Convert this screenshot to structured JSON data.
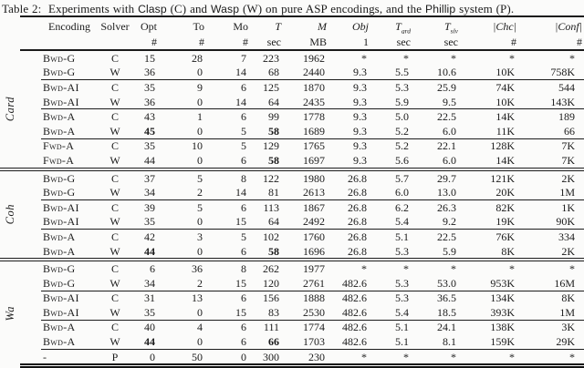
{
  "colors": {
    "ink": "#1b1b1b",
    "background": "#fbfbfa"
  },
  "caption": {
    "segments": [
      {
        "text": "Table 2:  Experiments with ",
        "sans": false
      },
      {
        "text": "Clasp",
        "sans": true
      },
      {
        "text": " (C) and ",
        "sans": false
      },
      {
        "text": "Wasp",
        "sans": true
      },
      {
        "text": " (W) on pure ASP encodings, and the ",
        "sans": false
      },
      {
        "text": "Phillip",
        "sans": true
      },
      {
        "text": " system (P).",
        "sans": false
      }
    ]
  },
  "table": {
    "columns": [
      {
        "key": "encoding",
        "label": "Encoding",
        "unit": "",
        "italic": false
      },
      {
        "key": "solver",
        "label": "Solver",
        "unit": "",
        "italic": false
      },
      {
        "key": "opt",
        "label": "Opt",
        "unit": "#",
        "italic": false
      },
      {
        "key": "to",
        "label": "To",
        "unit": "#",
        "italic": false
      },
      {
        "key": "mo",
        "label": "Mo",
        "unit": "#",
        "italic": false
      },
      {
        "key": "t",
        "label": "T",
        "unit": "sec",
        "italic": true
      },
      {
        "key": "m",
        "label": "M",
        "unit": "MB",
        "italic": true
      },
      {
        "key": "obj",
        "label": "Obj",
        "unit": "1",
        "italic": true
      },
      {
        "key": "tgrd",
        "label": "T",
        "sub": "grd",
        "unit": "sec",
        "italic": true
      },
      {
        "key": "tslv",
        "label": "T",
        "sub": "slv",
        "unit": "sec",
        "italic": true
      },
      {
        "key": "chc",
        "label": "|Chc|",
        "unit": "#",
        "italic": true
      },
      {
        "key": "conf",
        "label": "|Conf|",
        "unit": "#",
        "italic": true
      }
    ],
    "groups": [
      {
        "label": "Card",
        "subgroups": [
          {
            "rows": [
              {
                "encoding": "Bwd-G",
                "solver": "C",
                "values": [
                  "15",
                  "28",
                  "7",
                  "223",
                  "1962",
                  "*",
                  "*",
                  "*",
                  "*",
                  "*"
                ],
                "bold": []
              },
              {
                "encoding": "Bwd-G",
                "solver": "W",
                "values": [
                  "36",
                  "0",
                  "14",
                  "68",
                  "2440",
                  "9.3",
                  "5.5",
                  "10.6",
                  "10K",
                  "758K"
                ],
                "bold": []
              }
            ]
          },
          {
            "rows": [
              {
                "encoding": "Bwd-AI",
                "solver": "C",
                "values": [
                  "35",
                  "9",
                  "6",
                  "125",
                  "1870",
                  "9.3",
                  "5.3",
                  "25.9",
                  "74K",
                  "544"
                ],
                "bold": []
              },
              {
                "encoding": "Bwd-AI",
                "solver": "W",
                "values": [
                  "36",
                  "0",
                  "14",
                  "64",
                  "2435",
                  "9.3",
                  "5.9",
                  "9.5",
                  "10K",
                  "143K"
                ],
                "bold": []
              }
            ]
          },
          {
            "rows": [
              {
                "encoding": "Bwd-A",
                "solver": "C",
                "values": [
                  "43",
                  "1",
                  "6",
                  "99",
                  "1778",
                  "9.3",
                  "5.0",
                  "22.5",
                  "14K",
                  "189"
                ],
                "bold": []
              },
              {
                "encoding": "Bwd-A",
                "solver": "W",
                "values": [
                  "45",
                  "0",
                  "5",
                  "58",
                  "1689",
                  "9.3",
                  "5.2",
                  "6.0",
                  "11K",
                  "66"
                ],
                "bold": [
                  0,
                  3
                ]
              }
            ]
          },
          {
            "rows": [
              {
                "encoding": "Fwd-A",
                "solver": "C",
                "values": [
                  "35",
                  "10",
                  "5",
                  "129",
                  "1765",
                  "9.3",
                  "5.2",
                  "22.1",
                  "128K",
                  "7K"
                ],
                "bold": []
              },
              {
                "encoding": "Fwd-A",
                "solver": "W",
                "values": [
                  "44",
                  "0",
                  "6",
                  "58",
                  "1697",
                  "9.3",
                  "5.6",
                  "6.0",
                  "14K",
                  "7K"
                ],
                "bold": [
                  3
                ]
              }
            ]
          }
        ]
      },
      {
        "label": "Coh",
        "subgroups": [
          {
            "rows": [
              {
                "encoding": "Bwd-G",
                "solver": "C",
                "values": [
                  "37",
                  "5",
                  "8",
                  "122",
                  "1980",
                  "26.8",
                  "5.7",
                  "29.7",
                  "121K",
                  "2K"
                ],
                "bold": []
              },
              {
                "encoding": "Bwd-G",
                "solver": "W",
                "values": [
                  "34",
                  "2",
                  "14",
                  "81",
                  "2613",
                  "26.8",
                  "6.0",
                  "13.0",
                  "20K",
                  "1M"
                ],
                "bold": []
              }
            ]
          },
          {
            "rows": [
              {
                "encoding": "Bwd-AI",
                "solver": "C",
                "values": [
                  "39",
                  "5",
                  "6",
                  "113",
                  "1867",
                  "26.8",
                  "6.2",
                  "26.3",
                  "82K",
                  "1K"
                ],
                "bold": []
              },
              {
                "encoding": "Bwd-AI",
                "solver": "W",
                "values": [
                  "35",
                  "0",
                  "15",
                  "64",
                  "2492",
                  "26.8",
                  "5.4",
                  "9.2",
                  "19K",
                  "90K"
                ],
                "bold": []
              }
            ]
          },
          {
            "rows": [
              {
                "encoding": "Bwd-A",
                "solver": "C",
                "values": [
                  "42",
                  "3",
                  "5",
                  "102",
                  "1760",
                  "26.8",
                  "5.1",
                  "22.5",
                  "76K",
                  "334"
                ],
                "bold": []
              },
              {
                "encoding": "Bwd-A",
                "solver": "W",
                "values": [
                  "44",
                  "0",
                  "6",
                  "58",
                  "1696",
                  "26.8",
                  "5.3",
                  "5.9",
                  "8K",
                  "2K"
                ],
                "bold": [
                  0,
                  3
                ]
              }
            ]
          }
        ]
      },
      {
        "label": "Wa",
        "subgroups": [
          {
            "rows": [
              {
                "encoding": "Bwd-G",
                "solver": "C",
                "values": [
                  "6",
                  "36",
                  "8",
                  "262",
                  "1977",
                  "*",
                  "*",
                  "*",
                  "*",
                  "*"
                ],
                "bold": []
              },
              {
                "encoding": "Bwd-G",
                "solver": "W",
                "values": [
                  "34",
                  "2",
                  "15",
                  "120",
                  "2761",
                  "482.6",
                  "5.3",
                  "53.0",
                  "953K",
                  "16M"
                ],
                "bold": []
              }
            ]
          },
          {
            "rows": [
              {
                "encoding": "Bwd-AI",
                "solver": "C",
                "values": [
                  "31",
                  "13",
                  "6",
                  "156",
                  "1888",
                  "482.6",
                  "5.3",
                  "36.5",
                  "134K",
                  "8K"
                ],
                "bold": []
              },
              {
                "encoding": "Bwd-AI",
                "solver": "W",
                "values": [
                  "35",
                  "0",
                  "15",
                  "83",
                  "2530",
                  "482.6",
                  "5.4",
                  "18.5",
                  "393K",
                  "1M"
                ],
                "bold": []
              }
            ]
          },
          {
            "rows": [
              {
                "encoding": "Bwd-A",
                "solver": "C",
                "values": [
                  "40",
                  "4",
                  "6",
                  "111",
                  "1774",
                  "482.6",
                  "5.1",
                  "24.1",
                  "138K",
                  "3K"
                ],
                "bold": []
              },
              {
                "encoding": "Bwd-A",
                "solver": "W",
                "values": [
                  "44",
                  "0",
                  "6",
                  "66",
                  "1703",
                  "482.6",
                  "5.1",
                  "8.1",
                  "159K",
                  "29K"
                ],
                "bold": [
                  0,
                  3
                ]
              }
            ]
          },
          {
            "rows": [
              {
                "encoding": "-",
                "solver": "P",
                "values": [
                  "0",
                  "50",
                  "0",
                  "300",
                  "230",
                  "*",
                  "*",
                  "*",
                  "*",
                  "*"
                ],
                "bold": []
              }
            ]
          }
        ]
      }
    ]
  }
}
